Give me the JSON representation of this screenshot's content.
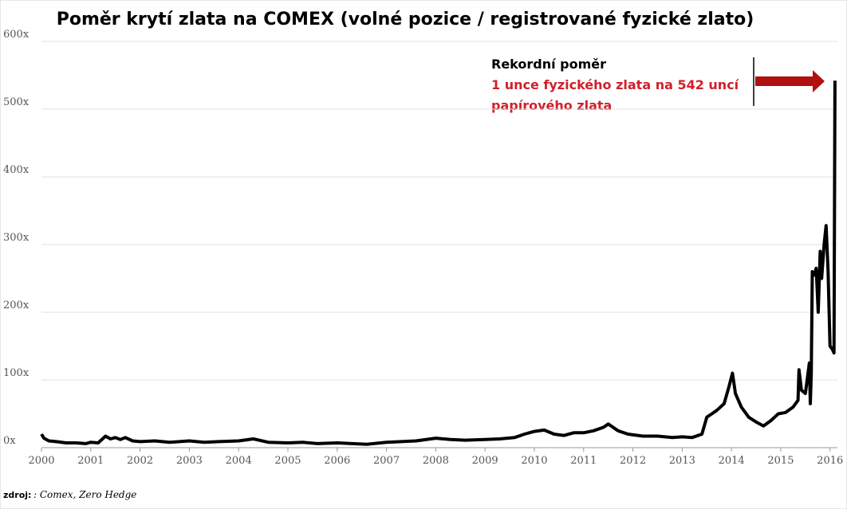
{
  "chart_data": {
    "type": "line",
    "title": "Poměr krytí zlata na COMEX (volné pozice / registrované fyzické zlato)",
    "annotations": [
      "Rekordní poměr",
      "1 unce fyzického zlata na 542 uncí",
      "papírového zlata"
    ],
    "source_label": "zdroj:",
    "source": ": Comex, Zero Hedge",
    "x": [
      2000.0,
      2000.05,
      2000.15,
      2000.3,
      2000.5,
      2000.7,
      2000.9,
      2001.0,
      2001.15,
      2001.3,
      2001.4,
      2001.5,
      2001.6,
      2001.7,
      2001.85,
      2002.0,
      2002.3,
      2002.6,
      2003.0,
      2003.3,
      2003.6,
      2004.0,
      2004.3,
      2004.6,
      2005.0,
      2005.3,
      2005.6,
      2006.0,
      2006.3,
      2006.6,
      2007.0,
      2007.3,
      2007.6,
      2008.0,
      2008.3,
      2008.6,
      2009.0,
      2009.3,
      2009.6,
      2009.8,
      2010.0,
      2010.2,
      2010.4,
      2010.6,
      2010.8,
      2011.0,
      2011.2,
      2011.4,
      2011.5,
      2011.7,
      2011.9,
      2012.2,
      2012.5,
      2012.8,
      2013.0,
      2013.2,
      2013.4,
      2013.5,
      2013.7,
      2013.85,
      2013.95,
      2014.02,
      2014.08,
      2014.2,
      2014.35,
      2014.5,
      2014.65,
      2014.8,
      2014.95,
      2015.1,
      2015.25,
      2015.35,
      2015.37,
      2015.42,
      2015.5,
      2015.58,
      2015.6,
      2015.62,
      2015.64,
      2015.68,
      2015.72,
      2015.76,
      2015.8,
      2015.83,
      2015.88,
      2015.92,
      2015.96,
      2016.0,
      2016.05,
      2016.08,
      2016.1
    ],
    "series": [
      {
        "name": "Poměr krytí",
        "color": "#000000",
        "values": [
          20,
          14,
          10,
          9,
          7,
          7,
          6,
          8,
          7,
          17,
          13,
          15,
          12,
          15,
          10,
          9,
          10,
          8,
          10,
          8,
          9,
          10,
          13,
          8,
          7,
          8,
          6,
          7,
          6,
          5,
          8,
          9,
          10,
          14,
          12,
          11,
          12,
          13,
          15,
          20,
          24,
          26,
          20,
          18,
          22,
          22,
          25,
          30,
          35,
          25,
          20,
          17,
          17,
          15,
          16,
          15,
          20,
          45,
          55,
          65,
          90,
          110,
          80,
          60,
          45,
          38,
          32,
          40,
          50,
          52,
          60,
          70,
          115,
          85,
          80,
          125,
          65,
          110,
          260,
          255,
          265,
          200,
          290,
          250,
          300,
          328,
          260,
          150,
          145,
          140,
          542
        ]
      }
    ],
    "xlim": [
      2000,
      2016.15
    ],
    "xticks": [
      2000,
      2001,
      2002,
      2003,
      2004,
      2005,
      2006,
      2007,
      2008,
      2009,
      2010,
      2011,
      2012,
      2013,
      2014,
      2015,
      2016
    ],
    "ylim": [
      0,
      600
    ],
    "yticks": [
      {
        "value": 0,
        "label": "0x"
      },
      {
        "value": 100,
        "label": "100x"
      },
      {
        "value": 200,
        "label": "200x"
      },
      {
        "value": 300,
        "label": "300x"
      },
      {
        "value": 400,
        "label": "400x"
      },
      {
        "value": 500,
        "label": "500x"
      },
      {
        "value": 600,
        "label": "600x"
      }
    ],
    "grid": true
  }
}
